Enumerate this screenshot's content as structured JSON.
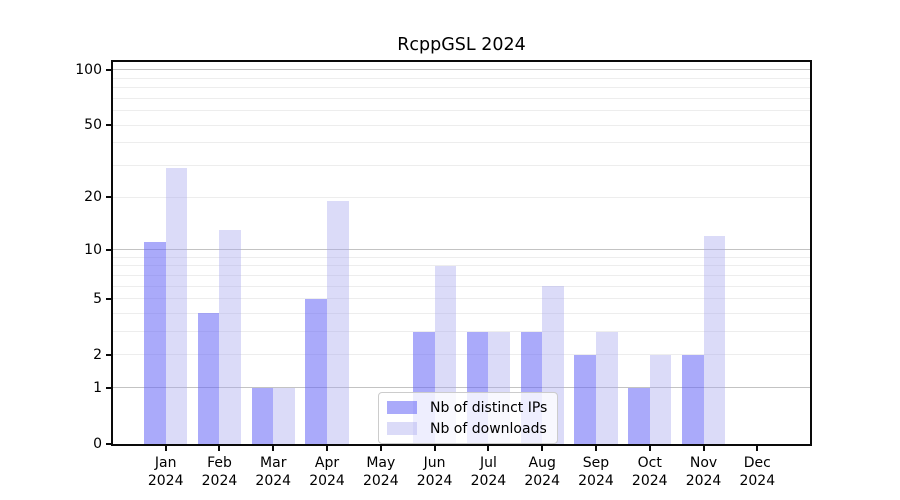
{
  "chart_data": {
    "type": "bar",
    "title": "RcppGSL 2024",
    "categories": [
      "Jan",
      "Feb",
      "Mar",
      "Apr",
      "May",
      "Jun",
      "Jul",
      "Aug",
      "Sep",
      "Oct",
      "Nov",
      "Dec"
    ],
    "year_label": "2024",
    "series": [
      {
        "name": "Nb of distinct IPs",
        "color": "rgba(100,100,245,0.55)",
        "values": [
          11,
          4,
          1,
          5,
          0,
          3,
          3,
          3,
          2,
          1,
          2,
          0
        ]
      },
      {
        "name": "Nb of downloads",
        "color": "rgba(165,165,238,0.40)",
        "values": [
          29,
          13,
          1,
          19,
          0,
          8,
          3,
          6,
          3,
          2,
          12,
          0
        ]
      }
    ],
    "yscale": "log10(1+x)",
    "ylim": [
      0,
      110
    ],
    "yticks": [
      0,
      1,
      2,
      5,
      10,
      20,
      50,
      100
    ],
    "major_gridlines": [
      1,
      10,
      100
    ],
    "minor_gridlines": [
      2,
      3,
      4,
      5,
      6,
      7,
      8,
      9,
      20,
      30,
      40,
      50,
      60,
      70,
      80,
      90
    ],
    "grid": "on",
    "legend_position": "lower-center-inside",
    "xlabel": "",
    "ylabel": ""
  },
  "colors": {
    "major_grid": "#c3c3c3",
    "minor_grid": "#ededed",
    "spine": "#0a0a0a",
    "background": "#ffffff"
  }
}
